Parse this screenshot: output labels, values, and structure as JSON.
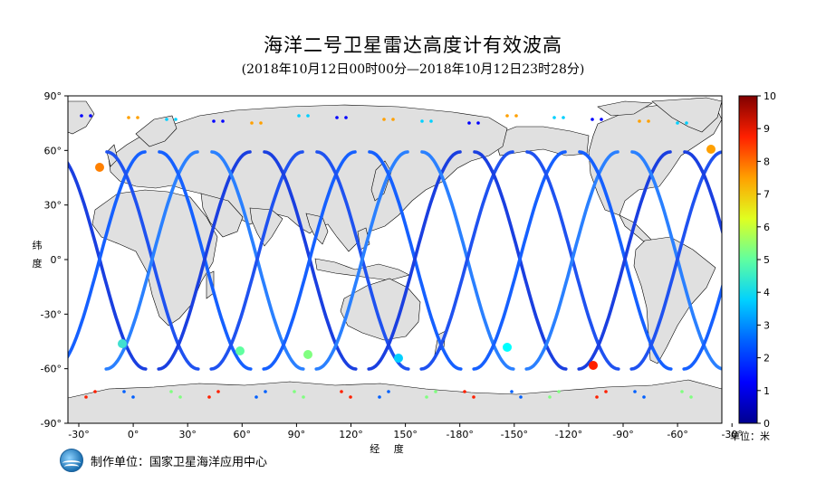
{
  "title": "海洋二号卫星雷达高度计有效波高",
  "subtitle": "(2018年10月12日00时00分—2018年10月12日23时28分)",
  "axes": {
    "y_title_chars": [
      "纬",
      "度"
    ],
    "x_title": "经 度",
    "lat_ticks": [
      "90°",
      "60°",
      "30°",
      "0°",
      "-30°",
      "-60°",
      "-90°"
    ],
    "lon_ticks": [
      "-30°",
      "0°",
      "30°",
      "60°",
      "90°",
      "120°",
      "150°",
      "-180°",
      "-150°",
      "-120°",
      "-90°",
      "-60°",
      "-30°"
    ]
  },
  "colorbar": {
    "ticks": [
      "10",
      "9",
      "8",
      "7",
      "6",
      "5",
      "4",
      "3",
      "2",
      "1",
      "0"
    ],
    "unit_label": "单位：米",
    "min": 0,
    "max": 10,
    "colors": [
      "#00008f",
      "#0000ff",
      "#0080ff",
      "#00ffff",
      "#80ff80",
      "#ffff00",
      "#ff8000",
      "#ff0000",
      "#800000"
    ]
  },
  "footer": {
    "org_text": "制作单位：国家卫星海洋应用中心"
  },
  "colors": {
    "land": "#e0e0e0",
    "ocean": "#ffffff",
    "coast": "#000000",
    "track_low": "#1a3fe0"
  }
}
